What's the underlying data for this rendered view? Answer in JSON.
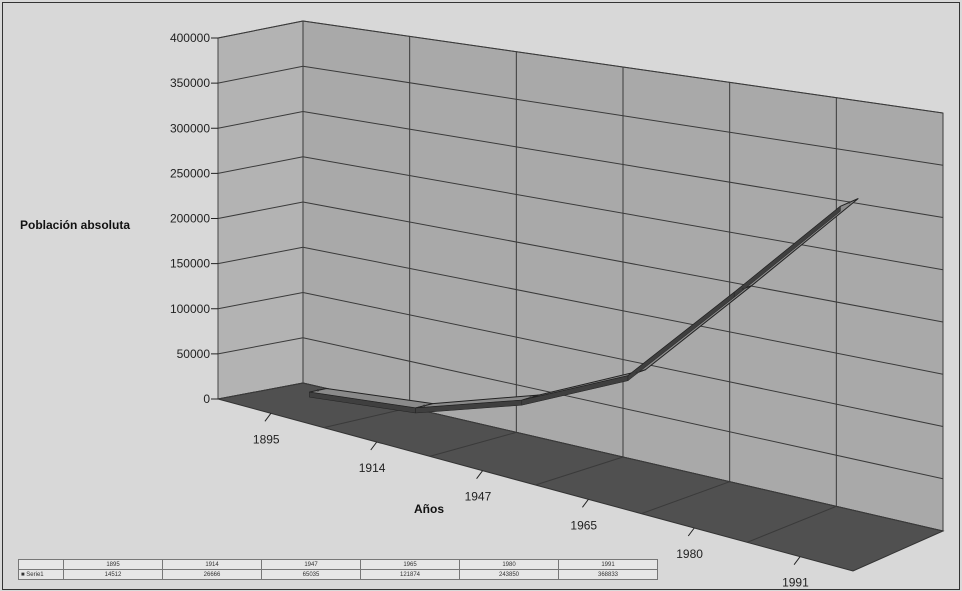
{
  "chart_data": {
    "type": "line",
    "style": "3d-ribbon",
    "title": "",
    "xlabel": "Años",
    "ylabel": "Población absoluta",
    "categories": [
      "1895",
      "1914",
      "1947",
      "1965",
      "1980",
      "1991"
    ],
    "series": [
      {
        "name": "Serie1",
        "values": [
          14512,
          26666,
          65035,
          121874,
          243850,
          368833
        ]
      }
    ],
    "yticks": [
      "0",
      "50000",
      "100000",
      "150000",
      "200000",
      "250000",
      "300000",
      "350000",
      "400000"
    ],
    "ylim": [
      0,
      400000
    ],
    "grid": true,
    "colors": {
      "ribbon_top": "#8a8a8a",
      "ribbon_side": "#3f3f3f",
      "wall": "#a9a9a9",
      "floor": "#505050",
      "grid": "#3a3a3a"
    }
  },
  "table": {
    "row_label": "Serie1",
    "headers": [
      "1895",
      "1914",
      "1947",
      "1965",
      "1980",
      "1991"
    ],
    "values": [
      "14512",
      "26666",
      "65035",
      "121874",
      "243850",
      "368833"
    ]
  }
}
